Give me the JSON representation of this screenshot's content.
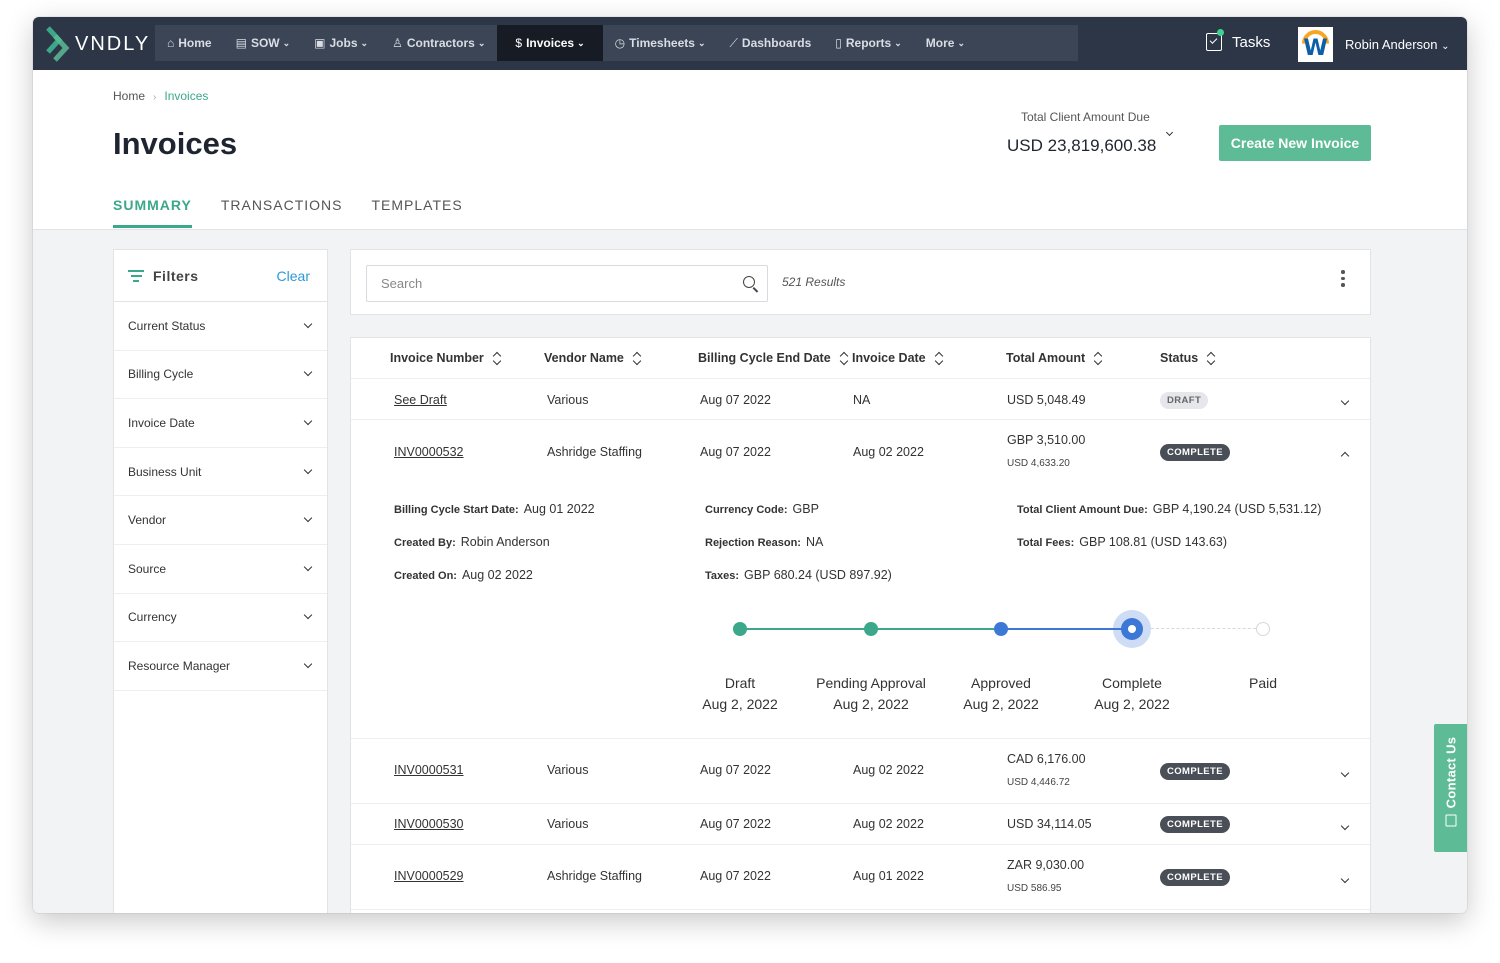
{
  "brand": "VNDLY",
  "nav": {
    "items": [
      {
        "label": "Home",
        "icon": "home-icon",
        "caret": false,
        "active": false
      },
      {
        "label": "SOW",
        "icon": "document-icon",
        "caret": true,
        "active": false
      },
      {
        "label": "Jobs",
        "icon": "briefcase-icon",
        "caret": true,
        "active": false
      },
      {
        "label": "Contractors",
        "icon": "person-icon",
        "caret": true,
        "active": false
      },
      {
        "label": "Invoices",
        "icon": "dollar-icon",
        "caret": true,
        "active": true
      },
      {
        "label": "Timesheets",
        "icon": "clock-icon",
        "caret": true,
        "active": false
      },
      {
        "label": "Dashboards",
        "icon": "chart-icon",
        "caret": false,
        "active": false
      },
      {
        "label": "Reports",
        "icon": "report-icon",
        "caret": true,
        "active": false
      },
      {
        "label": "More",
        "icon": "",
        "caret": true,
        "active": false
      }
    ],
    "tasks_label": "Tasks",
    "user_name": "Robin Anderson",
    "avatar_letter": "W"
  },
  "breadcrumb": {
    "home": "Home",
    "current": "Invoices"
  },
  "page": {
    "title": "Invoices",
    "due_label": "Total Client Amount Due",
    "due_value": "USD 23,819,600.38",
    "create_label": "Create New Invoice"
  },
  "tabs": [
    {
      "label": "SUMMARY",
      "active": true
    },
    {
      "label": "TRANSACTIONS",
      "active": false
    },
    {
      "label": "TEMPLATES",
      "active": false
    }
  ],
  "filters": {
    "title": "Filters",
    "clear": "Clear",
    "items": [
      "Current Status",
      "Billing Cycle",
      "Invoice Date",
      "Business Unit",
      "Vendor",
      "Source",
      "Currency",
      "Resource Manager"
    ]
  },
  "search": {
    "placeholder": "Search",
    "results": "521 Results"
  },
  "table": {
    "headers": [
      "Invoice Number",
      "Vendor Name",
      "Billing Cycle End Date",
      "Invoice Date",
      "Total Amount",
      "Status"
    ],
    "rows": [
      {
        "number": "See Draft",
        "vendor": "Various",
        "cycle_end": "Aug 07 2022",
        "invoice_date": "NA",
        "amount": "USD 5,048.49",
        "amount_sub": "",
        "status": "DRAFT"
      },
      {
        "number": "INV0000532",
        "vendor": "Ashridge Staffing",
        "cycle_end": "Aug 07 2022",
        "invoice_date": "Aug 02 2022",
        "amount": "GBP 3,510.00",
        "amount_sub": "USD 4,633.20",
        "status": "COMPLETE"
      },
      {
        "number": "INV0000531",
        "vendor": "Various",
        "cycle_end": "Aug 07 2022",
        "invoice_date": "Aug 02 2022",
        "amount": "CAD 6,176.00",
        "amount_sub": "USD 4,446.72",
        "status": "COMPLETE"
      },
      {
        "number": "INV0000530",
        "vendor": "Various",
        "cycle_end": "Aug 07 2022",
        "invoice_date": "Aug 02 2022",
        "amount": "USD 34,114.05",
        "amount_sub": "",
        "status": "COMPLETE"
      },
      {
        "number": "INV0000529",
        "vendor": "Ashridge Staffing",
        "cycle_end": "Aug 07 2022",
        "invoice_date": "Aug 01 2022",
        "amount": "ZAR 9,030.00",
        "amount_sub": "USD 586.95",
        "status": "COMPLETE"
      }
    ]
  },
  "expanded": {
    "billing_start_label": "Billing Cycle Start Date:",
    "billing_start": "Aug 01 2022",
    "created_by_label": "Created By:",
    "created_by": "Robin Anderson",
    "created_on_label": "Created On:",
    "created_on": "Aug 02 2022",
    "currency_label": "Currency Code:",
    "currency": "GBP",
    "rejection_label": "Rejection Reason:",
    "rejection": "NA",
    "taxes_label": "Taxes:",
    "taxes": "GBP 680.24 (USD 897.92)",
    "client_due_label": "Total Client Amount Due:",
    "client_due": "GBP 4,190.24 (USD 5,531.12)",
    "fees_label": "Total Fees:",
    "fees": "GBP 108.81 (USD 143.63)",
    "steps": [
      {
        "label": "Draft",
        "date": "Aug 2, 2022",
        "state": "done"
      },
      {
        "label": "Pending Approval",
        "date": "Aug 2, 2022",
        "state": "done"
      },
      {
        "label": "Approved",
        "date": "Aug 2, 2022",
        "state": "done-blue"
      },
      {
        "label": "Complete",
        "date": "Aug 2, 2022",
        "state": "current"
      },
      {
        "label": "Paid",
        "date": "",
        "state": "pending"
      }
    ]
  },
  "contact_label": "Contact Us",
  "colors": {
    "nav_bg": "#2d3646",
    "accent": "#5dbb95",
    "accent_text": "#3ba88b",
    "link_blue": "#2d9ad6",
    "progress_blue": "#3d78d6"
  }
}
